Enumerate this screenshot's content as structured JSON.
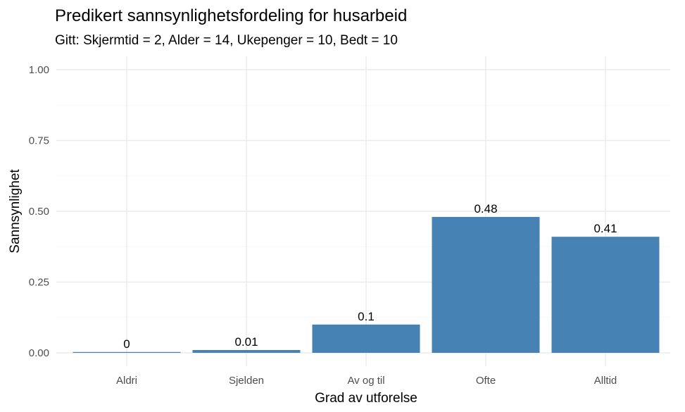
{
  "chart_data": {
    "type": "bar",
    "title": "Predikert sannsynlighetsfordeling for husarbeid",
    "subtitle": "Gitt: Skjermtid = 2, Alder = 14, Ukepenger = 10, Bedt = 10",
    "xlabel": "Grad av utforelse",
    "ylabel": "Sannsynlighet",
    "categories": [
      "Aldri",
      "Sjelden",
      "Av og til",
      "Ofte",
      "Alltid"
    ],
    "values": [
      0.003,
      0.01,
      0.1,
      0.48,
      0.41
    ],
    "value_labels": [
      "0",
      "0.01",
      "0.1",
      "0.48",
      "0.41"
    ],
    "ylim": [
      0,
      1
    ],
    "yticks": [
      0,
      0.25,
      0.5,
      0.75,
      1
    ],
    "ytick_labels": [
      "0.00",
      "0.25",
      "0.50",
      "0.75",
      "1.00"
    ],
    "bar_color": "#4682B4",
    "grid": true
  }
}
